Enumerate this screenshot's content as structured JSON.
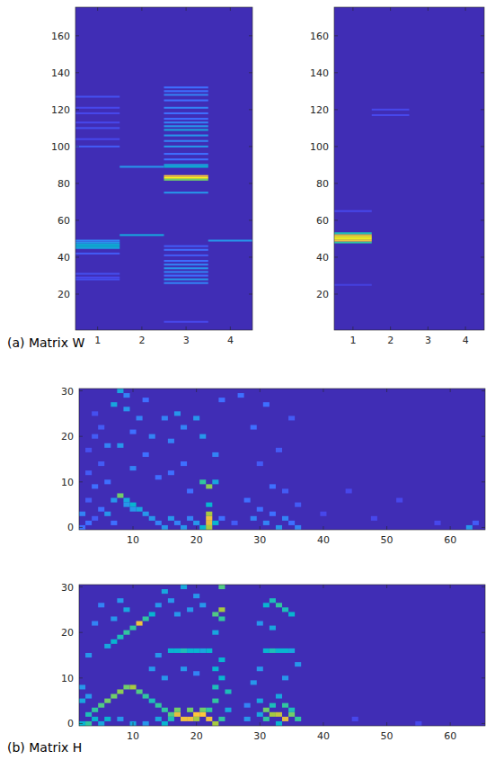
{
  "chart_data": [
    {
      "type": "heatmap",
      "caption": "(a) Matrix W",
      "color": "parula",
      "xlim": [
        0.5,
        4.5
      ],
      "xticks": [
        1,
        2,
        3,
        4
      ],
      "ylim": [
        0.5,
        175.5
      ],
      "yticks": [
        20,
        40,
        60,
        80,
        100,
        120,
        140,
        160
      ],
      "color_range": [
        0,
        1
      ],
      "background_value": 0.02,
      "cells": [
        [
          1,
          45,
          0.35
        ],
        [
          1,
          46,
          0.4
        ],
        [
          1,
          47,
          0.38
        ],
        [
          1,
          48,
          0.3
        ],
        [
          1,
          49,
          0.25
        ],
        [
          1,
          42,
          0.15
        ],
        [
          1,
          28,
          0.12
        ],
        [
          1,
          29,
          0.1
        ],
        [
          1,
          31,
          0.12
        ],
        [
          1,
          100,
          0.15
        ],
        [
          1,
          104,
          0.1
        ],
        [
          1,
          110,
          0.12
        ],
        [
          1,
          113,
          0.1
        ],
        [
          1,
          118,
          0.1
        ],
        [
          1,
          121,
          0.1
        ],
        [
          1,
          127,
          0.12
        ],
        [
          2,
          52,
          0.35
        ],
        [
          2,
          89,
          0.3
        ],
        [
          3,
          83,
          1.0
        ],
        [
          3,
          84,
          0.9
        ],
        [
          3,
          82,
          0.6
        ],
        [
          3,
          89,
          0.4
        ],
        [
          3,
          90,
          0.35
        ],
        [
          3,
          75,
          0.3
        ],
        [
          3,
          100,
          0.3
        ],
        [
          3,
          103,
          0.25
        ],
        [
          3,
          106,
          0.3
        ],
        [
          3,
          109,
          0.35
        ],
        [
          3,
          111,
          0.3
        ],
        [
          3,
          113,
          0.25
        ],
        [
          3,
          115,
          0.2
        ],
        [
          3,
          118,
          0.2
        ],
        [
          3,
          121,
          0.25
        ],
        [
          3,
          125,
          0.2
        ],
        [
          3,
          128,
          0.25
        ],
        [
          3,
          130,
          0.2
        ],
        [
          3,
          132,
          0.2
        ],
        [
          3,
          96,
          0.2
        ],
        [
          3,
          93,
          0.2
        ],
        [
          3,
          26,
          0.25
        ],
        [
          3,
          28,
          0.3
        ],
        [
          3,
          30,
          0.2
        ],
        [
          3,
          32,
          0.25
        ],
        [
          3,
          34,
          0.3
        ],
        [
          3,
          36,
          0.25
        ],
        [
          3,
          38,
          0.2
        ],
        [
          3,
          41,
          0.15
        ],
        [
          3,
          44,
          0.2
        ],
        [
          3,
          46,
          0.15
        ],
        [
          3,
          5,
          0.1
        ],
        [
          4,
          49,
          0.3
        ]
      ]
    },
    {
      "type": "heatmap",
      "color": "parula",
      "xlim": [
        0.5,
        4.5
      ],
      "xticks": [
        1,
        2,
        3,
        4
      ],
      "ylim": [
        0.5,
        175.5
      ],
      "yticks": [
        20,
        40,
        60,
        80,
        100,
        120,
        140,
        160
      ],
      "color_range": [
        0,
        1
      ],
      "background_value": 0.02,
      "cells": [
        [
          1,
          48,
          0.5
        ],
        [
          1,
          49,
          0.85
        ],
        [
          1,
          50,
          1.0
        ],
        [
          1,
          51,
          1.0
        ],
        [
          1,
          52,
          0.8
        ],
        [
          1,
          53,
          0.45
        ],
        [
          1,
          65,
          0.1
        ],
        [
          1,
          25,
          0.08
        ],
        [
          2,
          117,
          0.1
        ],
        [
          2,
          120,
          0.1
        ]
      ]
    },
    {
      "type": "heatmap",
      "caption": "(b) Matrix H",
      "color": "parula",
      "xlim": [
        1.5,
        65.5
      ],
      "xticks": [
        10,
        20,
        30,
        40,
        50,
        60
      ],
      "ylim": [
        -0.5,
        30.5
      ],
      "yticks": [
        0,
        10,
        20,
        30
      ],
      "color_range": [
        0,
        1
      ],
      "background_value": 0.02,
      "cells": [
        [
          2,
          0,
          0.2
        ],
        [
          2,
          3,
          0.25
        ],
        [
          3,
          1,
          0.2
        ],
        [
          3,
          6,
          0.15
        ],
        [
          3,
          12,
          0.15
        ],
        [
          3,
          17,
          0.12
        ],
        [
          4,
          2,
          0.15
        ],
        [
          4,
          9,
          0.2
        ],
        [
          4,
          20,
          0.15
        ],
        [
          4,
          25,
          0.12
        ],
        [
          5,
          4,
          0.2
        ],
        [
          5,
          14,
          0.15
        ],
        [
          5,
          22,
          0.15
        ],
        [
          6,
          3,
          0.3
        ],
        [
          6,
          10,
          0.2
        ],
        [
          6,
          18,
          0.25
        ],
        [
          7,
          1,
          0.2
        ],
        [
          7,
          6,
          0.3
        ],
        [
          7,
          27,
          0.35
        ],
        [
          8,
          7,
          0.6
        ],
        [
          8,
          30,
          0.35
        ],
        [
          8,
          18,
          0.3
        ],
        [
          9,
          6,
          0.35
        ],
        [
          9,
          5,
          0.3
        ],
        [
          9,
          26,
          0.3
        ],
        [
          9,
          29,
          0.25
        ],
        [
          10,
          5,
          0.4
        ],
        [
          10,
          4,
          0.3
        ],
        [
          10,
          13,
          0.25
        ],
        [
          10,
          21,
          0.2
        ],
        [
          11,
          4,
          0.35
        ],
        [
          11,
          24,
          0.25
        ],
        [
          12,
          3,
          0.3
        ],
        [
          12,
          16,
          0.2
        ],
        [
          12,
          28,
          0.2
        ],
        [
          13,
          2,
          0.3
        ],
        [
          13,
          20,
          0.25
        ],
        [
          14,
          1,
          0.25
        ],
        [
          14,
          11,
          0.2
        ],
        [
          15,
          0,
          0.3
        ],
        [
          15,
          24,
          0.25
        ],
        [
          16,
          2,
          0.3
        ],
        [
          16,
          12,
          0.2
        ],
        [
          16,
          19,
          0.25
        ],
        [
          17,
          1,
          0.25
        ],
        [
          17,
          25,
          0.3
        ],
        [
          18,
          0,
          0.3
        ],
        [
          18,
          14,
          0.2
        ],
        [
          18,
          22,
          0.25
        ],
        [
          19,
          2,
          0.25
        ],
        [
          19,
          8,
          0.2
        ],
        [
          20,
          1,
          0.3
        ],
        [
          20,
          24,
          0.3
        ],
        [
          21,
          0,
          0.4
        ],
        [
          21,
          10,
          0.5
        ],
        [
          21,
          20,
          0.3
        ],
        [
          22,
          0,
          0.7
        ],
        [
          22,
          1,
          0.8
        ],
        [
          22,
          2,
          0.85
        ],
        [
          22,
          3,
          0.7
        ],
        [
          22,
          9,
          0.65
        ],
        [
          22,
          5,
          0.4
        ],
        [
          23,
          1,
          0.4
        ],
        [
          23,
          10,
          0.35
        ],
        [
          23,
          16,
          0.25
        ],
        [
          24,
          2,
          0.2
        ],
        [
          24,
          28,
          0.2
        ],
        [
          26,
          1,
          0.15
        ],
        [
          27,
          29,
          0.2
        ],
        [
          28,
          6,
          0.2
        ],
        [
          29,
          2,
          0.25
        ],
        [
          29,
          22,
          0.2
        ],
        [
          30,
          4,
          0.2
        ],
        [
          30,
          14,
          0.15
        ],
        [
          31,
          1,
          0.25
        ],
        [
          31,
          27,
          0.2
        ],
        [
          32,
          3,
          0.2
        ],
        [
          32,
          9,
          0.2
        ],
        [
          33,
          0,
          0.3
        ],
        [
          33,
          17,
          0.15
        ],
        [
          34,
          2,
          0.25
        ],
        [
          34,
          8,
          0.15
        ],
        [
          35,
          1,
          0.2
        ],
        [
          35,
          24,
          0.15
        ],
        [
          36,
          0,
          0.25
        ],
        [
          36,
          5,
          0.15
        ],
        [
          40,
          3,
          0.1
        ],
        [
          44,
          8,
          0.1
        ],
        [
          48,
          2,
          0.1
        ],
        [
          52,
          6,
          0.1
        ],
        [
          58,
          1,
          0.1
        ],
        [
          63,
          0,
          0.3
        ],
        [
          64,
          1,
          0.15
        ]
      ]
    },
    {
      "type": "heatmap",
      "color": "parula",
      "xlim": [
        1.5,
        65.5
      ],
      "xticks": [
        10,
        20,
        30,
        40,
        50,
        60
      ],
      "ylim": [
        -0.5,
        30.5
      ],
      "yticks": [
        0,
        10,
        20,
        30
      ],
      "color_range": [
        0,
        1
      ],
      "background_value": 0.02,
      "cells": [
        [
          3,
          2,
          0.45
        ],
        [
          4,
          3,
          0.5
        ],
        [
          4,
          1,
          0.4
        ],
        [
          5,
          4,
          0.55
        ],
        [
          6,
          5,
          0.6
        ],
        [
          7,
          6,
          0.6
        ],
        [
          8,
          7,
          0.65
        ],
        [
          9,
          8,
          0.6
        ],
        [
          10,
          8,
          0.7
        ],
        [
          11,
          7,
          0.55
        ],
        [
          12,
          6,
          0.5
        ],
        [
          13,
          5,
          0.45
        ],
        [
          14,
          4,
          0.5
        ],
        [
          15,
          3,
          0.5
        ],
        [
          16,
          2,
          0.55
        ],
        [
          17,
          2,
          0.8
        ],
        [
          18,
          1,
          0.85
        ],
        [
          19,
          1,
          0.85
        ],
        [
          20,
          2,
          0.9
        ],
        [
          21,
          2,
          0.9
        ],
        [
          22,
          1,
          0.85
        ],
        [
          23,
          0,
          0.7
        ],
        [
          17,
          3,
          0.6
        ],
        [
          19,
          3,
          0.6
        ],
        [
          21,
          3,
          0.6
        ],
        [
          20,
          1,
          0.7
        ],
        [
          22,
          3,
          0.5
        ],
        [
          2,
          0,
          0.4
        ],
        [
          3,
          0,
          0.5
        ],
        [
          5,
          0,
          0.35
        ],
        [
          6,
          1,
          0.4
        ],
        [
          8,
          1,
          0.3
        ],
        [
          10,
          0,
          0.35
        ],
        [
          12,
          0,
          0.3
        ],
        [
          14,
          1,
          0.35
        ],
        [
          15,
          0,
          0.4
        ],
        [
          16,
          1,
          0.45
        ],
        [
          6,
          17,
          0.35
        ],
        [
          7,
          18,
          0.4
        ],
        [
          8,
          19,
          0.45
        ],
        [
          9,
          20,
          0.5
        ],
        [
          10,
          21,
          0.5
        ],
        [
          11,
          22,
          0.85
        ],
        [
          12,
          23,
          0.5
        ],
        [
          13,
          24,
          0.4
        ],
        [
          7,
          23,
          0.3
        ],
        [
          8,
          27,
          0.3
        ],
        [
          9,
          25,
          0.35
        ],
        [
          5,
          26,
          0.25
        ],
        [
          4,
          22,
          0.25
        ],
        [
          3,
          15,
          0.3
        ],
        [
          2,
          5,
          0.35
        ],
        [
          3,
          6,
          0.3
        ],
        [
          2,
          8,
          0.3
        ],
        [
          16,
          16,
          0.4
        ],
        [
          17,
          16,
          0.4
        ],
        [
          18,
          16,
          0.45
        ],
        [
          19,
          16,
          0.4
        ],
        [
          20,
          16,
          0.4
        ],
        [
          21,
          16,
          0.35
        ],
        [
          22,
          16,
          0.4
        ],
        [
          31,
          16,
          0.4
        ],
        [
          32,
          16,
          0.45
        ],
        [
          33,
          16,
          0.4
        ],
        [
          34,
          16,
          0.4
        ],
        [
          35,
          16,
          0.35
        ],
        [
          23,
          5,
          0.5
        ],
        [
          23,
          8,
          0.45
        ],
        [
          23,
          12,
          0.4
        ],
        [
          23,
          20,
          0.35
        ],
        [
          23,
          24,
          0.55
        ],
        [
          24,
          25,
          0.7
        ],
        [
          24,
          23,
          0.5
        ],
        [
          24,
          14,
          0.4
        ],
        [
          24,
          30,
          0.55
        ],
        [
          24,
          10,
          0.4
        ],
        [
          25,
          7,
          0.45
        ],
        [
          25,
          3,
          0.35
        ],
        [
          24,
          1,
          0.5
        ],
        [
          14,
          26,
          0.3
        ],
        [
          15,
          29,
          0.35
        ],
        [
          16,
          27,
          0.3
        ],
        [
          18,
          30,
          0.35
        ],
        [
          17,
          24,
          0.3
        ],
        [
          19,
          25,
          0.3
        ],
        [
          20,
          28,
          0.3
        ],
        [
          21,
          26,
          0.3
        ],
        [
          13,
          12,
          0.3
        ],
        [
          14,
          15,
          0.3
        ],
        [
          15,
          10,
          0.3
        ],
        [
          18,
          12,
          0.3
        ],
        [
          20,
          11,
          0.25
        ],
        [
          30,
          2,
          0.35
        ],
        [
          31,
          3,
          0.6
        ],
        [
          32,
          2,
          0.7
        ],
        [
          33,
          2,
          0.75
        ],
        [
          34,
          1,
          0.8
        ],
        [
          35,
          2,
          0.6
        ],
        [
          36,
          1,
          0.5
        ],
        [
          31,
          1,
          0.5
        ],
        [
          32,
          4,
          0.45
        ],
        [
          33,
          0,
          0.4
        ],
        [
          30,
          5,
          0.35
        ],
        [
          33,
          6,
          0.35
        ],
        [
          34,
          4,
          0.5
        ],
        [
          35,
          3,
          0.45
        ],
        [
          31,
          26,
          0.4
        ],
        [
          32,
          27,
          0.45
        ],
        [
          33,
          26,
          0.5
        ],
        [
          34,
          25,
          0.45
        ],
        [
          35,
          24,
          0.4
        ],
        [
          32,
          21,
          0.35
        ],
        [
          30,
          22,
          0.3
        ],
        [
          29,
          9,
          0.3
        ],
        [
          30,
          12,
          0.3
        ],
        [
          34,
          10,
          0.3
        ],
        [
          36,
          13,
          0.3
        ],
        [
          28,
          1,
          0.3
        ],
        [
          28,
          4,
          0.25
        ],
        [
          45,
          1,
          0.1
        ],
        [
          55,
          0,
          0.1
        ]
      ]
    }
  ]
}
